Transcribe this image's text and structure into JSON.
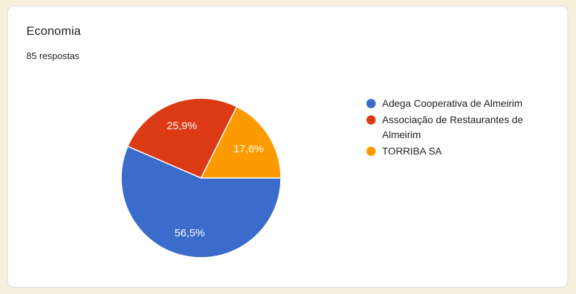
{
  "page": {
    "background_color": "#f8eedc"
  },
  "card": {
    "background_color": "#ffffff",
    "border_color": "#dadce0",
    "title": "Economia",
    "subtitle": "85 respostas"
  },
  "chart_data": {
    "type": "pie",
    "title": "Economia",
    "responses_label": "85 respostas",
    "total_responses": 85,
    "start_angle_deg": 0,
    "direction": "clockwise",
    "legend_position": "right",
    "slice_border_color": "#ffffff",
    "slice_label_color": "#ffffff",
    "label_radius_ratio": 0.7,
    "slices": [
      {
        "id": "adega",
        "name": "Adega Cooperativa de Almeirim",
        "value": 56.5,
        "label": "56,5%",
        "color": "#3b6bcb"
      },
      {
        "id": "associacao",
        "name": "Associação de Restaurantes de Almeirim",
        "value": 25.9,
        "label": "25,9%",
        "color": "#db3a15"
      },
      {
        "id": "torriba",
        "name": "TORRIBA SA",
        "value": 17.6,
        "label": "17,6%",
        "color": "#fc9a00"
      }
    ]
  }
}
